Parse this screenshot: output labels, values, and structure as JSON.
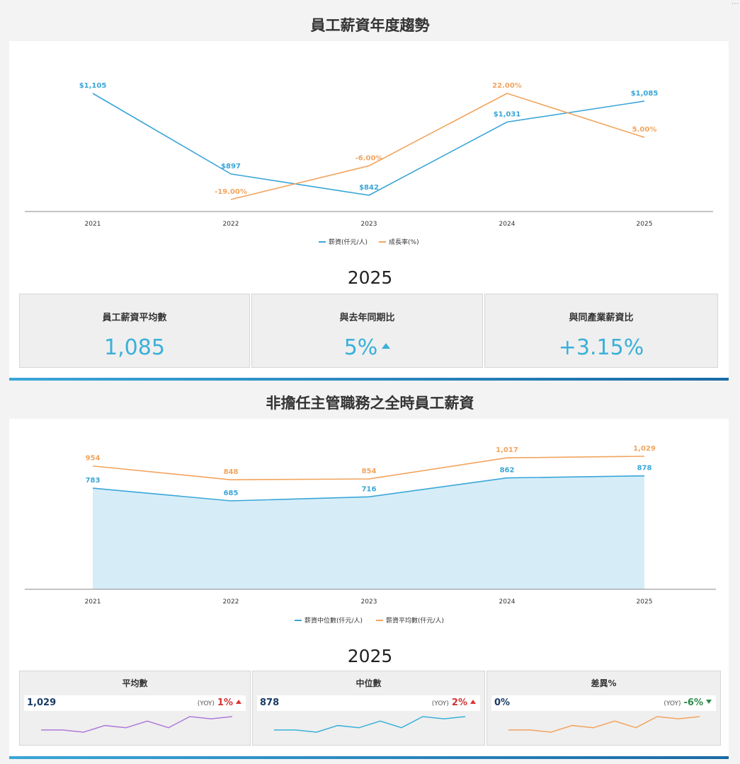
{
  "section1": {
    "title": "員工薪資年度趨勢",
    "year": "2025",
    "kpis": [
      {
        "label": "員工薪資平均數",
        "value": "1,085"
      },
      {
        "label": "與去年同期比",
        "value": "5%",
        "trend": "up"
      },
      {
        "label": "與同產業薪資比",
        "value": "+3.15%"
      }
    ]
  },
  "section2": {
    "title": "非擔任主管職務之全時員工薪資",
    "year": "2025",
    "cards": [
      {
        "label": "平均數",
        "value": "1,029",
        "yoy_tag": "(YOY)",
        "yoy": "1%",
        "trend": "up",
        "spark_color": "#b07ad9"
      },
      {
        "label": "中位數",
        "value": "878",
        "yoy_tag": "(YOY)",
        "yoy": "2%",
        "trend": "up",
        "spark_color": "#3ab0d9"
      },
      {
        "label": "差異%",
        "value": "0%",
        "yoy_tag": "(YOY)",
        "yoy": "-6%",
        "trend": "down",
        "spark_color": "#f2a45e"
      }
    ]
  },
  "colors": {
    "blue": "#3aa6d8",
    "orange": "#f2a45e",
    "red": "#d33333",
    "green": "#2a8a4a"
  },
  "chart_data": [
    {
      "type": "line",
      "title": "員工薪資年度趨勢",
      "categories": [
        "2021",
        "2022",
        "2023",
        "2024",
        "2025"
      ],
      "series": [
        {
          "name": "薪資(仟元/人)",
          "values": [
            1105,
            897,
            842,
            1031,
            1085
          ],
          "labels": [
            "$1,105",
            "$897",
            "$842",
            "$1,031",
            "$1,085"
          ],
          "color": "#3aa6d8"
        },
        {
          "name": "成長率(%)",
          "values": [
            null,
            -19.0,
            -6.0,
            22.0,
            5.0
          ],
          "labels": [
            "",
            "-19.00%",
            "-6.00%",
            "22.00%",
            "5.00%"
          ],
          "color": "#f2a45e"
        }
      ],
      "legend": "bottom"
    },
    {
      "type": "area",
      "title": "非擔任主管職務之全時員工薪資",
      "categories": [
        "2021",
        "2022",
        "2023",
        "2024",
        "2025"
      ],
      "series": [
        {
          "name": "薪資中位數(仟元/人)",
          "values": [
            783,
            685,
            716,
            862,
            878
          ],
          "labels": [
            "783",
            "685",
            "716",
            "862",
            "878"
          ],
          "color": "#3aa6d8",
          "fill": true
        },
        {
          "name": "薪資平均數(仟元/人)",
          "values": [
            954,
            848,
            854,
            1017,
            1029
          ],
          "labels": [
            "954",
            "848",
            "854",
            "1,017",
            "1,029"
          ],
          "color": "#f2a45e"
        }
      ],
      "legend": "bottom"
    },
    {
      "type": "line",
      "series": [
        {
          "name": "",
          "values": [
            3,
            3,
            2,
            5,
            4,
            7,
            4,
            9,
            8,
            9
          ]
        },
        {
          "name": "",
          "values": [
            3,
            3,
            2,
            5,
            4,
            7,
            4,
            9,
            8,
            9
          ]
        },
        {
          "name": "",
          "values": [
            3,
            3,
            2,
            5,
            4,
            7,
            4,
            9,
            8,
            9
          ]
        }
      ]
    }
  ]
}
